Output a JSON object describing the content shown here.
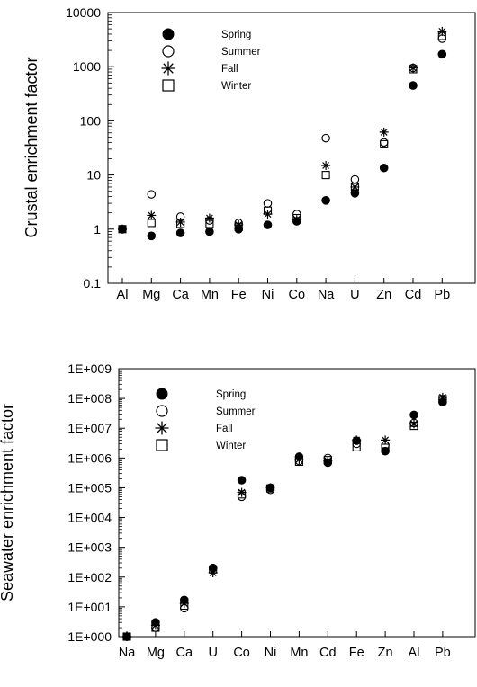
{
  "chart_data": [
    {
      "type": "scatter",
      "title": "",
      "xlabel": "",
      "ylabel": "Crustal enrichment factor",
      "yscale": "log",
      "ylim": [
        0.1,
        10000
      ],
      "grid": false,
      "legend_position": "top-left",
      "yticks": [
        "0.1",
        "1",
        "10",
        "100",
        "1000",
        "10000"
      ],
      "categories": [
        "Al",
        "Mg",
        "Ca",
        "Mn",
        "Fe",
        "Ni",
        "Co",
        "Na",
        "U",
        "Zn",
        "Cd",
        "Pb"
      ],
      "series": [
        {
          "name": "Spring",
          "marker": "filled-circle",
          "values": [
            1.0,
            0.75,
            0.85,
            0.9,
            1.0,
            1.2,
            1.4,
            3.4,
            4.6,
            13.5,
            450,
            1700
          ]
        },
        {
          "name": "Summer",
          "marker": "open-circle",
          "values": [
            1.0,
            4.4,
            1.7,
            1.45,
            1.3,
            3.0,
            1.9,
            48,
            8.3,
            40,
            950,
            3300
          ]
        },
        {
          "name": "Fall",
          "marker": "asterisk",
          "values": [
            1.0,
            1.8,
            1.35,
            1.6,
            1.2,
            1.9,
            1.5,
            15,
            6.0,
            62,
            950,
            4500
          ]
        },
        {
          "name": "Winter",
          "marker": "open-square",
          "values": [
            1.0,
            1.3,
            1.25,
            1.25,
            1.1,
            2.2,
            1.6,
            10,
            6.0,
            37,
            900,
            3700
          ]
        }
      ]
    },
    {
      "type": "scatter",
      "title": "",
      "xlabel": "",
      "ylabel": "Seawater enrichment factor",
      "yscale": "log",
      "ylim": [
        1,
        1000000000
      ],
      "grid": false,
      "legend_position": "top-left",
      "yticks": [
        "1E+000",
        "1E+001",
        "1E+002",
        "1E+003",
        "1E+004",
        "1E+005",
        "1E+006",
        "1E+007",
        "1E+008",
        "1E+009"
      ],
      "categories": [
        "Na",
        "Mg",
        "Ca",
        "U",
        "Co",
        "Ni",
        "Mn",
        "Cd",
        "Fe",
        "Zn",
        "Al",
        "Pb"
      ],
      "series": [
        {
          "name": "Spring",
          "marker": "filled-circle",
          "values": [
            1,
            3,
            17,
            200,
            180000,
            100000,
            1100000,
            700000,
            3800000,
            1700000,
            28000000,
            75000000
          ]
        },
        {
          "name": "Summer",
          "marker": "open-circle",
          "values": [
            1,
            2,
            9,
            200,
            50000,
            85000,
            800000,
            1000000,
            3000000,
            2700000,
            15000000,
            90000000
          ]
        },
        {
          "name": "Fall",
          "marker": "asterisk",
          "values": [
            1,
            2.4,
            13,
            140,
            70000,
            100000,
            900000,
            800000,
            4000000,
            4000000,
            14000000,
            110000000
          ]
        },
        {
          "name": "Winter",
          "marker": "open-square",
          "values": [
            1,
            2,
            11,
            180,
            60000,
            95000,
            750000,
            850000,
            2300000,
            2200000,
            12000000,
            95000000
          ]
        }
      ]
    }
  ]
}
